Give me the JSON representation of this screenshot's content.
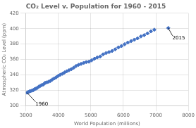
{
  "chart_data": {
    "type": "scatter",
    "title": "CO₂ Level v. Population for 1960 - 2015",
    "xlabel": "World Population (millions)",
    "ylabel": "Atmospheric CO₂ Level (ppm)",
    "x": [
      3034,
      3070,
      3107,
      3145,
      3184,
      3224,
      3265,
      3307,
      3351,
      3396,
      3443,
      3491,
      3541,
      3592,
      3645,
      3699,
      3755,
      3813,
      3872,
      3933,
      3995,
      4059,
      4124,
      4190,
      4258,
      4328,
      4399,
      4472,
      4546,
      4622,
      4699,
      4778,
      4858,
      4940,
      5024,
      5110,
      5197,
      5286,
      5376,
      5468,
      5560,
      5654,
      5749,
      5845,
      5942,
      6040,
      6138,
      6237,
      6337,
      6438,
      6540,
      6642,
      6745,
      6849,
      6954,
      7383
    ],
    "values": [
      316.9,
      317.6,
      318.4,
      318.9,
      319.6,
      320.0,
      321.4,
      322.0,
      323.1,
      324.6,
      325.7,
      326.8,
      327.5,
      329.7,
      330.2,
      331.1,
      332.1,
      333.9,
      335.4,
      336.8,
      338.7,
      340.1,
      341.4,
      343.1,
      344.6,
      346.0,
      347.4,
      349.2,
      351.5,
      353.0,
      354.2,
      355.5,
      356.5,
      357.1,
      358.8,
      360.9,
      362.6,
      363.8,
      366.6,
      368.3,
      369.5,
      371.0,
      373.1,
      375.6,
      377.4,
      379.7,
      381.9,
      383.8,
      385.6,
      387.4,
      389.9,
      391.6,
      393.8,
      396.5,
      398.6,
      400.8
    ],
    "color": "#4472C4",
    "marker": "diamond",
    "xlim": [
      3000,
      8000
    ],
    "ylim": [
      300,
      420
    ],
    "xticks": [
      3000,
      4000,
      5000,
      6000,
      7000,
      8000
    ],
    "yticks": [
      300,
      320,
      340,
      360,
      380,
      400,
      420
    ],
    "grid": true,
    "annotations": [
      {
        "text": "1960",
        "x": 3034,
        "y": 316.9
      },
      {
        "text": "2015",
        "x": 7383,
        "y": 400.8
      }
    ]
  }
}
